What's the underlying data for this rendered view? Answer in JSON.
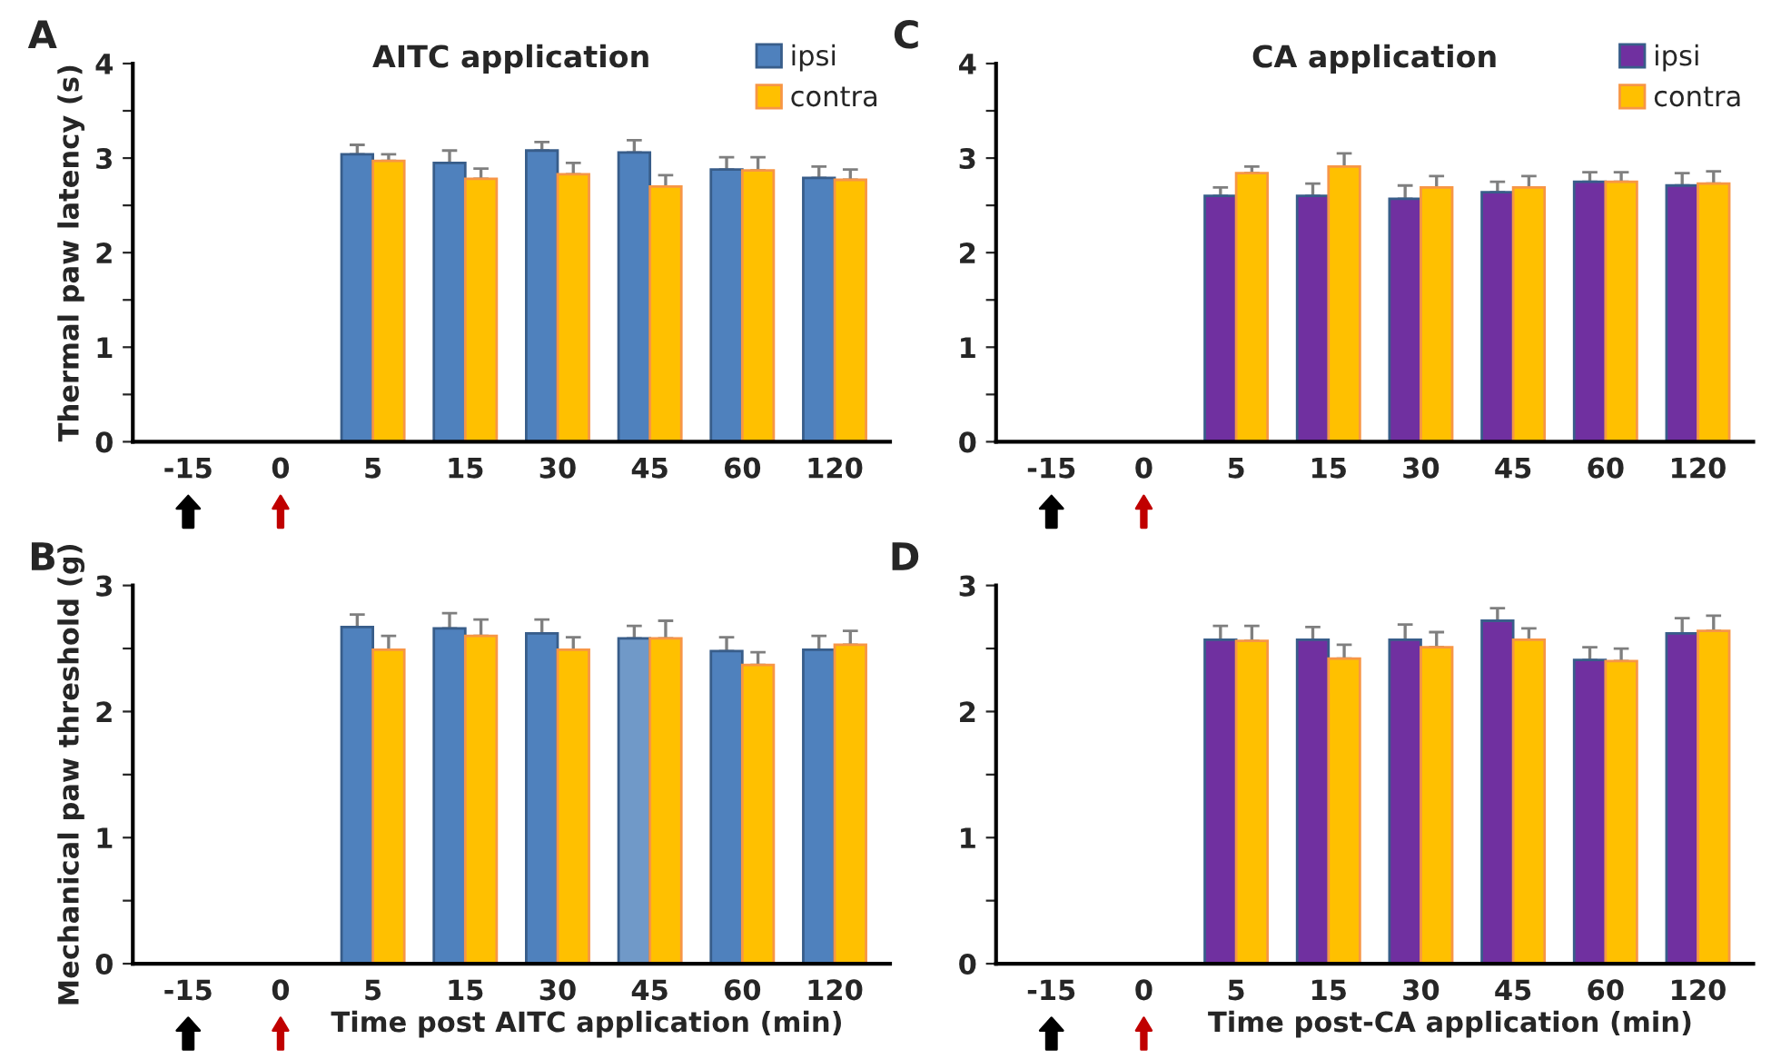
{
  "chart_data": [
    {
      "type": "bar",
      "title": "AITC application",
      "ylabel": "Thermal paw latency (s)",
      "annotations": [
        "A"
      ],
      "legend": "top right",
      "categories": [
        "-15",
        "0",
        "5",
        "15",
        "30",
        "45",
        "60",
        "120"
      ],
      "ylim": [
        0,
        4
      ],
      "yticks": [
        0,
        {
          "value": 0.5,
          "label": null
        },
        1,
        {
          "value": 1.5,
          "label": null
        },
        2,
        {
          "value": 2.5,
          "label": null
        },
        3,
        {
          "value": 3.5,
          "label": null
        },
        4
      ],
      "series": [
        {
          "name": "ipsi",
          "color": "#4f81bd",
          "values": [
            null,
            null,
            3.04,
            2.95,
            3.08,
            3.06,
            2.88,
            2.79
          ],
          "errors": [
            null,
            null,
            [
              3.04,
              3.14
            ],
            [
              2.95,
              3.08
            ],
            [
              3.08,
              3.17
            ],
            [
              3.06,
              3.19
            ],
            [
              2.88,
              3.01
            ],
            [
              2.79,
              2.91
            ]
          ]
        },
        {
          "name": "contra",
          "color": "#ffc000",
          "values": [
            null,
            null,
            2.97,
            2.78,
            2.83,
            2.7,
            2.87,
            2.77
          ],
          "errors": [
            null,
            null,
            [
              2.97,
              3.04
            ],
            [
              2.78,
              2.89
            ],
            [
              2.83,
              2.95
            ],
            [
              2.7,
              2.82
            ],
            [
              2.87,
              3.01
            ],
            [
              2.77,
              2.88
            ]
          ]
        }
      ]
    },
    {
      "type": "bar",
      "title": "CA application",
      "annotations": [
        "C"
      ],
      "legend": "top right",
      "categories": [
        "-15",
        "0",
        "5",
        "15",
        "30",
        "45",
        "60",
        "120"
      ],
      "ylim": [
        0,
        4
      ],
      "yticks": [
        0,
        {
          "value": 0.5,
          "label": null
        },
        1,
        {
          "value": 1.5,
          "label": null
        },
        2,
        {
          "value": 2.5,
          "label": null
        },
        3,
        {
          "value": 3.5,
          "label": null
        },
        4
      ],
      "series": [
        {
          "name": "ipsi",
          "color": "#7030a0",
          "values": [
            null,
            null,
            2.6,
            2.6,
            2.57,
            2.64,
            2.75,
            2.71
          ],
          "errors": [
            null,
            null,
            [
              2.6,
              2.69
            ],
            [
              2.6,
              2.73
            ],
            [
              2.57,
              2.71
            ],
            [
              2.64,
              2.75
            ],
            [
              2.75,
              2.85
            ],
            [
              2.71,
              2.84
            ]
          ]
        },
        {
          "name": "contra",
          "color": "#ffc000",
          "values": [
            null,
            null,
            2.84,
            2.91,
            2.69,
            2.69,
            2.75,
            2.73
          ],
          "errors": [
            null,
            null,
            [
              2.84,
              2.91
            ],
            [
              2.91,
              3.05
            ],
            [
              2.69,
              2.81
            ],
            [
              2.69,
              2.81
            ],
            [
              2.75,
              2.85
            ],
            [
              2.73,
              2.86
            ]
          ]
        }
      ]
    },
    {
      "type": "bar",
      "ylabel": "Mechanical paw threshold (g)",
      "xlabel": "Time post AITC application (min)",
      "annotations": [
        "B"
      ],
      "categories": [
        "-15",
        "0",
        "5",
        "15",
        "30",
        "45",
        "60",
        "120"
      ],
      "ylim": [
        0,
        3
      ],
      "yticks": [
        0,
        {
          "value": 0.5,
          "label": null
        },
        1,
        {
          "value": 1.5,
          "label": null
        },
        2,
        {
          "value": 2.5,
          "label": null
        },
        3
      ],
      "series": [
        {
          "color": "#4f81bd",
          "colors": [
            "#4f81bd",
            "#4f81bd",
            "#4f81bd",
            "#4f81bd",
            "#4f81bd",
            "#7099c8",
            "#4f81bd",
            "#4f81bd"
          ],
          "values": [
            null,
            null,
            2.67,
            2.66,
            2.62,
            2.58,
            2.48,
            2.49
          ],
          "errors": [
            null,
            null,
            [
              2.67,
              2.77
            ],
            [
              2.66,
              2.78
            ],
            [
              2.62,
              2.73
            ],
            [
              2.58,
              2.68
            ],
            [
              2.48,
              2.59
            ],
            [
              2.49,
              2.6
            ]
          ]
        },
        {
          "color": "#ffc000",
          "values": [
            null,
            null,
            2.49,
            2.6,
            2.49,
            2.58,
            2.37,
            2.53
          ],
          "errors": [
            null,
            null,
            [
              2.49,
              2.6
            ],
            [
              2.6,
              2.73
            ],
            [
              2.49,
              2.59
            ],
            [
              2.58,
              2.72
            ],
            [
              2.37,
              2.47
            ],
            [
              2.53,
              2.64
            ]
          ]
        }
      ]
    },
    {
      "type": "bar",
      "xlabel": "Time post-CA application (min)",
      "annotations": [
        "D"
      ],
      "categories": [
        "-15",
        "0",
        "5",
        "15",
        "30",
        "45",
        "60",
        "120"
      ],
      "ylim": [
        0,
        3
      ],
      "yticks": [
        0,
        {
          "value": 0.5,
          "label": null
        },
        1,
        {
          "value": 1.5,
          "label": null
        },
        2,
        {
          "value": 2.5,
          "label": null
        },
        3
      ],
      "series": [
        {
          "color": "#7030a0",
          "values": [
            null,
            null,
            2.57,
            2.57,
            2.57,
            2.72,
            2.41,
            2.62
          ],
          "errors": [
            null,
            null,
            [
              2.57,
              2.68
            ],
            [
              2.57,
              2.67
            ],
            [
              2.57,
              2.69
            ],
            [
              2.72,
              2.82
            ],
            [
              2.41,
              2.51
            ],
            [
              2.62,
              2.74
            ]
          ]
        },
        {
          "color": "#ffc000",
          "values": [
            null,
            null,
            2.56,
            2.42,
            2.51,
            2.57,
            2.4,
            2.64
          ],
          "errors": [
            null,
            null,
            [
              2.56,
              2.68
            ],
            [
              2.42,
              2.53
            ],
            [
              2.51,
              2.63
            ],
            [
              2.57,
              2.66
            ],
            [
              2.4,
              2.5
            ],
            [
              2.64,
              2.76
            ]
          ]
        }
      ]
    }
  ]
}
